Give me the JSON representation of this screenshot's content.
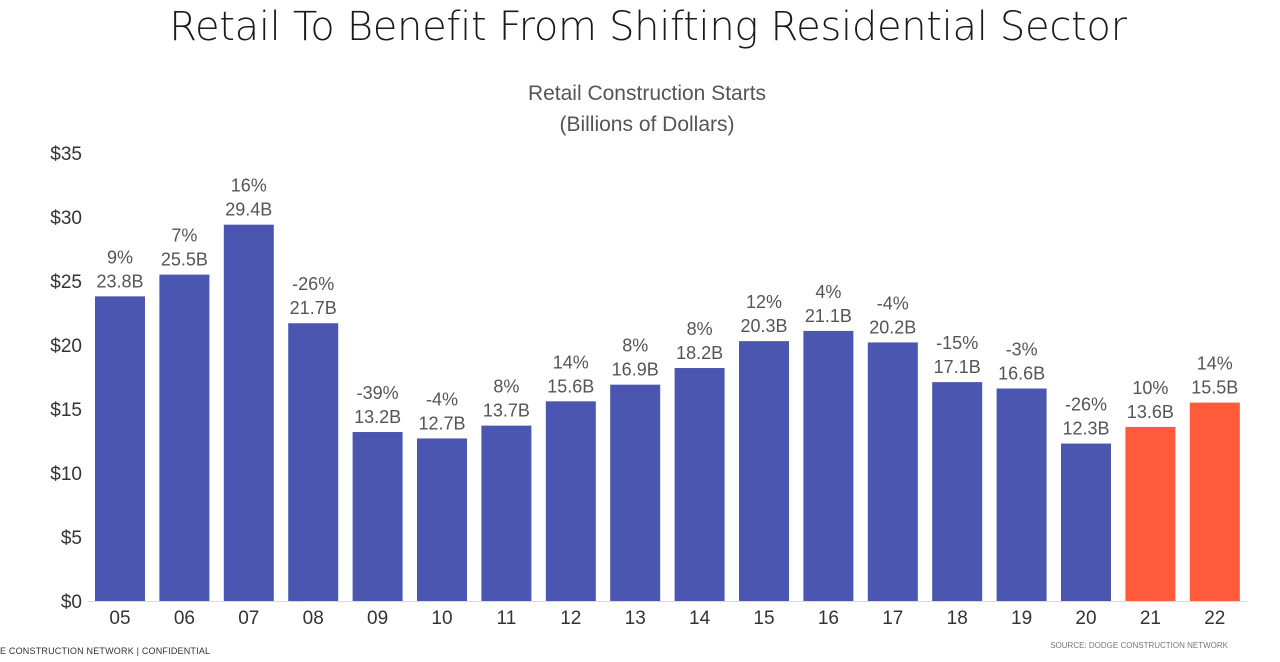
{
  "slide": {
    "title": "Retail To Benefit From Shifting Residential Sector",
    "footer_left": "E CONSTRUCTION NETWORK  |  CONFIDENTIAL",
    "footer_right": "SOURCE: DODGE CONSTRUCTION NETWORK"
  },
  "colors": {
    "actual": "#4A56B0",
    "forecast": "#FF5A3A"
  },
  "chart_data": {
    "type": "bar",
    "title": "Retail Construction Starts",
    "subtitle": "(Billions of Dollars)",
    "xlabel": "",
    "ylabel": "",
    "ylim": [
      0,
      35
    ],
    "yticks": [
      "$0",
      "$5",
      "$10",
      "$15",
      "$20",
      "$25",
      "$30",
      "$35"
    ],
    "grid": false,
    "categories": [
      "05",
      "06",
      "07",
      "08",
      "09",
      "10",
      "11",
      "12",
      "13",
      "14",
      "15",
      "16",
      "17",
      "18",
      "19",
      "20",
      "21",
      "22"
    ],
    "values": [
      23.8,
      25.5,
      29.4,
      21.7,
      13.2,
      12.7,
      13.7,
      15.6,
      16.9,
      18.2,
      20.3,
      21.1,
      20.2,
      17.1,
      16.6,
      12.3,
      13.6,
      15.5
    ],
    "value_labels": [
      "23.8B",
      "25.5B",
      "29.4B",
      "21.7B",
      "13.2B",
      "12.7B",
      "13.7B",
      "15.6B",
      "16.9B",
      "18.2B",
      "20.3B",
      "21.1B",
      "20.2B",
      "17.1B",
      "16.6B",
      "12.3B",
      "13.6B",
      "15.5B"
    ],
    "pct_labels": [
      "9%",
      "7%",
      "16%",
      "-26%",
      "-39%",
      "-4%",
      "8%",
      "14%",
      "8%",
      "8%",
      "12%",
      "4%",
      "-4%",
      "-15%",
      "-3%",
      "-26%",
      "10%",
      "14%"
    ],
    "forecast": [
      false,
      false,
      false,
      false,
      false,
      false,
      false,
      false,
      false,
      false,
      false,
      false,
      false,
      false,
      false,
      false,
      true,
      true
    ]
  }
}
